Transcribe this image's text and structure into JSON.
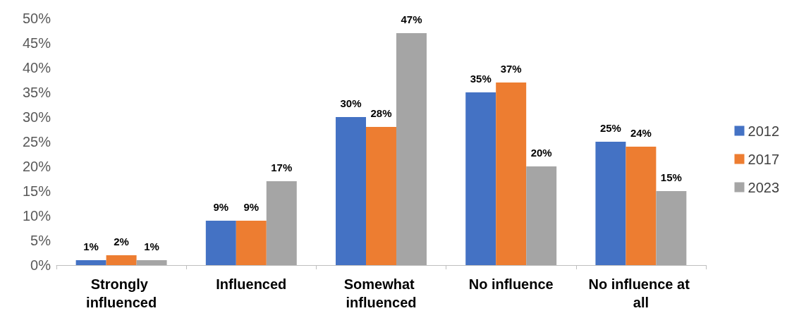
{
  "chart_data": {
    "type": "bar",
    "categories": [
      "Strongly influenced",
      "Influenced",
      "Somewhat influenced",
      "No influence",
      "No influence at all"
    ],
    "series": [
      {
        "name": "2012",
        "color": "#4472c4",
        "values": [
          1,
          9,
          30,
          35,
          25
        ],
        "value_labels": [
          "1%",
          "9%",
          "30%",
          "35%",
          "25%"
        ]
      },
      {
        "name": "2017",
        "color": "#ed7d31",
        "values": [
          2,
          9,
          28,
          37,
          24
        ],
        "value_labels": [
          "2%",
          "9%",
          "28%",
          "37%",
          "24%"
        ]
      },
      {
        "name": "2023",
        "color": "#a5a5a5",
        "values": [
          1,
          17,
          47,
          20,
          15
        ],
        "value_labels": [
          "1%",
          "17%",
          "47%",
          "20%",
          "15%"
        ]
      }
    ],
    "ylim": [
      0,
      50
    ],
    "yticks": [
      {
        "value": 0,
        "label": "0%"
      },
      {
        "value": 5,
        "label": "5%"
      },
      {
        "value": 10,
        "label": "10%"
      },
      {
        "value": 15,
        "label": "15%"
      },
      {
        "value": 20,
        "label": "20%"
      },
      {
        "value": 25,
        "label": "25%"
      },
      {
        "value": 30,
        "label": "30%"
      },
      {
        "value": 35,
        "label": "35%"
      },
      {
        "value": 40,
        "label": "40%"
      },
      {
        "value": 45,
        "label": "45%"
      },
      {
        "value": 50,
        "label": "50%"
      }
    ],
    "grid": false,
    "legend": "right"
  }
}
